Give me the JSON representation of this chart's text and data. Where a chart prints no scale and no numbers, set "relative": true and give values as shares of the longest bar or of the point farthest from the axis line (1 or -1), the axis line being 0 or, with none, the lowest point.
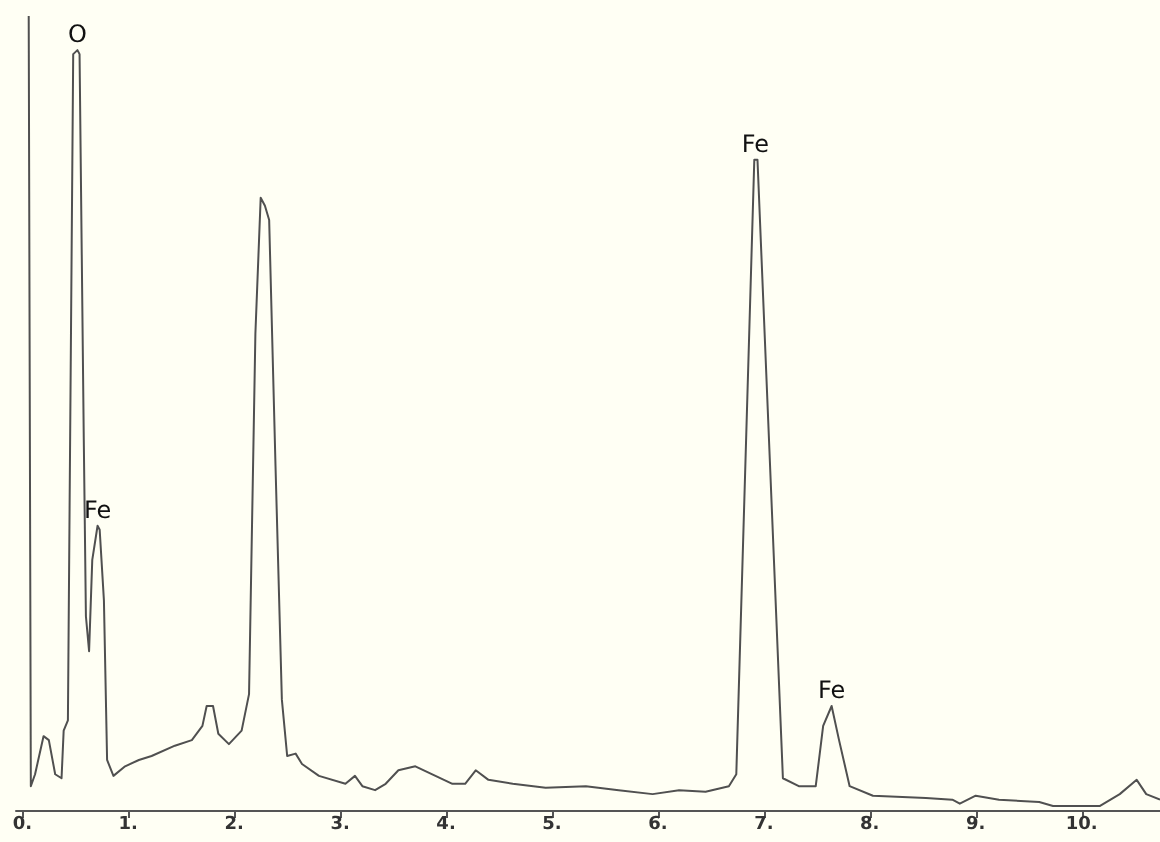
{
  "chart_data": {
    "type": "line",
    "relative": true,
    "color": "#505050",
    "grid": false,
    "marker": "none",
    "line_style": "solid",
    "xlim": [
      -0.06,
      10.74
    ],
    "xticks": [
      {
        "value": 0,
        "label": "0."
      },
      {
        "value": 1,
        "label": "1."
      },
      {
        "value": 2,
        "label": "2."
      },
      {
        "value": 3,
        "label": "3."
      },
      {
        "value": 4,
        "label": "4."
      },
      {
        "value": 5,
        "label": "5."
      },
      {
        "value": 6,
        "label": "6."
      },
      {
        "value": 7,
        "label": "7."
      },
      {
        "value": 8,
        "label": "8."
      },
      {
        "value": 9,
        "label": "9."
      },
      {
        "value": 10,
        "label": "10."
      }
    ],
    "x": [
      0.06,
      0.08,
      0.12,
      0.2,
      0.25,
      0.31,
      0.37,
      0.39,
      0.43,
      0.48,
      0.52,
      0.54,
      0.58,
      0.6,
      0.63,
      0.66,
      0.71,
      0.73,
      0.77,
      0.8,
      0.86,
      0.97,
      1.1,
      1.22,
      1.44,
      1.6,
      1.7,
      1.74,
      1.8,
      1.85,
      1.95,
      2.07,
      2.14,
      2.2,
      2.25,
      2.29,
      2.33,
      2.39,
      2.45,
      2.5,
      2.58,
      2.64,
      2.8,
      3.05,
      3.14,
      3.21,
      3.33,
      3.43,
      3.55,
      3.71,
      4.06,
      4.18,
      4.28,
      4.4,
      4.63,
      4.94,
      5.32,
      5.63,
      5.95,
      6.2,
      6.45,
      6.67,
      6.74,
      6.91,
      6.94,
      7.18,
      7.33,
      7.49,
      7.56,
      7.64,
      7.71,
      7.81,
      8.03,
      8.53,
      8.78,
      8.85,
      9.0,
      9.22,
      9.6,
      9.73,
      10.17,
      10.36,
      10.52,
      10.61,
      10.74
    ],
    "values": [
      1.0,
      0.03,
      0.045,
      0.093,
      0.088,
      0.045,
      0.04,
      0.1,
      0.113,
      0.952,
      0.957,
      0.952,
      0.466,
      0.244,
      0.2,
      0.315,
      0.358,
      0.353,
      0.264,
      0.063,
      0.043,
      0.055,
      0.063,
      0.068,
      0.081,
      0.088,
      0.106,
      0.131,
      0.131,
      0.096,
      0.083,
      0.1,
      0.146,
      0.6,
      0.771,
      0.761,
      0.743,
      0.433,
      0.139,
      0.068,
      0.071,
      0.058,
      0.043,
      0.033,
      0.043,
      0.03,
      0.025,
      0.033,
      0.05,
      0.055,
      0.033,
      0.033,
      0.05,
      0.038,
      0.033,
      0.028,
      0.03,
      0.025,
      0.02,
      0.025,
      0.023,
      0.03,
      0.045,
      0.819,
      0.819,
      0.04,
      0.03,
      0.03,
      0.106,
      0.131,
      0.088,
      0.03,
      0.018,
      0.015,
      0.013,
      0.008,
      0.018,
      0.013,
      0.01,
      0.005,
      0.005,
      0.02,
      0.038,
      0.02,
      0.013
    ],
    "annotations": [
      {
        "text": "O",
        "x": 0.52,
        "y": 0.957
      },
      {
        "text": "Fe",
        "x": 0.71,
        "y": 0.358
      },
      {
        "text": "Fe",
        "x": 6.92,
        "y": 0.819
      },
      {
        "text": "Fe",
        "x": 7.64,
        "y": 0.131
      }
    ]
  }
}
